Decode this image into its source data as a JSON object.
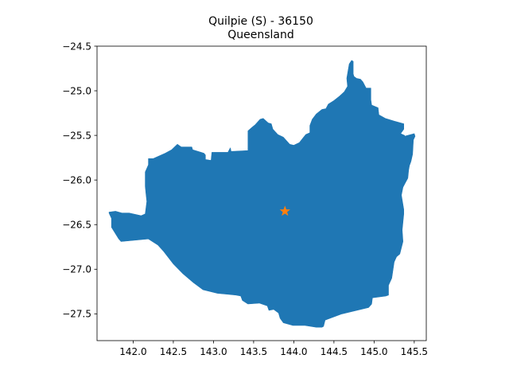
{
  "figure": {
    "title": "Quilpie (S) - 36150",
    "subtitle": "Queensland"
  },
  "chart_data": {
    "type": "map",
    "title": "Quilpie (S) - 36150",
    "subtitle": "Queensland",
    "xlim": [
      141.55,
      145.65
    ],
    "ylim": [
      -27.8,
      -24.5
    ],
    "grid": false,
    "x_ticks": [
      142.0,
      142.5,
      143.0,
      143.5,
      144.0,
      144.5,
      145.0,
      145.5
    ],
    "x_tick_labels": [
      "142.0",
      "142.5",
      "143.0",
      "143.5",
      "144.0",
      "144.5",
      "145.0",
      "145.5"
    ],
    "y_ticks": [
      -24.5,
      -25.0,
      -25.5,
      -26.0,
      -26.5,
      -27.0,
      -27.5
    ],
    "y_tick_labels": [
      "−24.5",
      "−25.0",
      "−25.5",
      "−26.0",
      "−26.5",
      "−27.0",
      "−27.5"
    ],
    "region": {
      "fill_color": "#1f77b4",
      "boundary_lonlat": [
        [
          141.7,
          -26.36
        ],
        [
          141.78,
          -26.35
        ],
        [
          141.86,
          -26.37
        ],
        [
          141.95,
          -26.37
        ],
        [
          142.05,
          -26.39
        ],
        [
          142.1,
          -26.4
        ],
        [
          142.15,
          -26.38
        ],
        [
          142.17,
          -26.24
        ],
        [
          142.16,
          -26.16
        ],
        [
          142.15,
          -26.07
        ],
        [
          142.15,
          -25.91
        ],
        [
          142.19,
          -25.83
        ],
        [
          142.19,
          -25.76
        ],
        [
          142.25,
          -25.76
        ],
        [
          142.3,
          -25.74
        ],
        [
          142.4,
          -25.7
        ],
        [
          142.48,
          -25.66
        ],
        [
          142.55,
          -25.6
        ],
        [
          142.6,
          -25.63
        ],
        [
          142.73,
          -25.63
        ],
        [
          142.74,
          -25.66
        ],
        [
          142.88,
          -25.7
        ],
        [
          142.9,
          -25.72
        ],
        [
          142.9,
          -25.77
        ],
        [
          142.97,
          -25.78
        ],
        [
          142.98,
          -25.69
        ],
        [
          143.18,
          -25.69
        ],
        [
          143.21,
          -25.64
        ],
        [
          143.22,
          -25.68
        ],
        [
          143.43,
          -25.67
        ],
        [
          143.43,
          -25.45
        ],
        [
          143.48,
          -25.41
        ],
        [
          143.52,
          -25.38
        ],
        [
          143.58,
          -25.32
        ],
        [
          143.62,
          -25.31
        ],
        [
          143.68,
          -25.36
        ],
        [
          143.72,
          -25.37
        ],
        [
          143.74,
          -25.43
        ],
        [
          143.8,
          -25.49
        ],
        [
          143.87,
          -25.52
        ],
        [
          143.95,
          -25.6
        ],
        [
          144.0,
          -25.61
        ],
        [
          144.07,
          -25.58
        ],
        [
          144.15,
          -25.49
        ],
        [
          144.2,
          -25.47
        ],
        [
          144.2,
          -25.39
        ],
        [
          144.23,
          -25.32
        ],
        [
          144.28,
          -25.26
        ],
        [
          144.35,
          -25.21
        ],
        [
          144.4,
          -25.2
        ],
        [
          144.43,
          -25.15
        ],
        [
          144.5,
          -25.11
        ],
        [
          144.57,
          -25.06
        ],
        [
          144.63,
          -25.01
        ],
        [
          144.65,
          -24.98
        ],
        [
          144.67,
          -24.95
        ],
        [
          144.66,
          -24.86
        ],
        [
          144.69,
          -24.7
        ],
        [
          144.72,
          -24.66
        ],
        [
          144.74,
          -24.67
        ],
        [
          144.74,
          -24.81
        ],
        [
          144.75,
          -24.84
        ],
        [
          144.78,
          -24.86
        ],
        [
          144.83,
          -24.87
        ],
        [
          144.86,
          -24.9
        ],
        [
          144.9,
          -24.97
        ],
        [
          144.96,
          -24.97
        ],
        [
          144.96,
          -25.1
        ],
        [
          144.97,
          -25.16
        ],
        [
          145.05,
          -25.19
        ],
        [
          145.06,
          -25.27
        ],
        [
          145.14,
          -25.31
        ],
        [
          145.25,
          -25.34
        ],
        [
          145.37,
          -25.37
        ],
        [
          145.37,
          -25.43
        ],
        [
          145.33,
          -25.48
        ],
        [
          145.38,
          -25.5
        ],
        [
          145.38,
          -25.51
        ],
        [
          145.5,
          -25.48
        ],
        [
          145.51,
          -25.51
        ],
        [
          145.49,
          -25.55
        ],
        [
          145.48,
          -25.71
        ],
        [
          145.46,
          -25.79
        ],
        [
          145.44,
          -25.84
        ],
        [
          145.43,
          -25.89
        ],
        [
          145.42,
          -25.98
        ],
        [
          145.36,
          -26.08
        ],
        [
          145.34,
          -26.17
        ],
        [
          145.37,
          -26.33
        ],
        [
          145.37,
          -26.38
        ],
        [
          145.35,
          -26.56
        ],
        [
          145.36,
          -26.69
        ],
        [
          145.32,
          -26.83
        ],
        [
          145.28,
          -26.86
        ],
        [
          145.25,
          -26.92
        ],
        [
          145.22,
          -27.1
        ],
        [
          145.18,
          -27.18
        ],
        [
          145.18,
          -27.29
        ],
        [
          145.15,
          -27.3
        ],
        [
          144.98,
          -27.32
        ],
        [
          144.97,
          -27.39
        ],
        [
          144.93,
          -27.43
        ],
        [
          144.6,
          -27.5
        ],
        [
          144.39,
          -27.57
        ],
        [
          144.37,
          -27.64
        ],
        [
          144.35,
          -27.65
        ],
        [
          144.28,
          -27.65
        ],
        [
          144.14,
          -27.63
        ],
        [
          143.99,
          -27.63
        ],
        [
          143.87,
          -27.6
        ],
        [
          143.83,
          -27.55
        ],
        [
          143.81,
          -27.49
        ],
        [
          143.75,
          -27.45
        ],
        [
          143.69,
          -27.46
        ],
        [
          143.67,
          -27.41
        ],
        [
          143.57,
          -27.38
        ],
        [
          143.43,
          -27.39
        ],
        [
          143.36,
          -27.35
        ],
        [
          143.34,
          -27.3
        ],
        [
          143.28,
          -27.29
        ],
        [
          143.17,
          -27.28
        ],
        [
          143.05,
          -27.27
        ],
        [
          142.87,
          -27.23
        ],
        [
          142.75,
          -27.15
        ],
        [
          142.62,
          -27.05
        ],
        [
          142.5,
          -26.94
        ],
        [
          142.38,
          -26.8
        ],
        [
          142.31,
          -26.73
        ],
        [
          142.19,
          -26.66
        ],
        [
          141.85,
          -26.69
        ],
        [
          141.82,
          -26.66
        ],
        [
          141.73,
          -26.53
        ],
        [
          141.73,
          -26.43
        ],
        [
          141.7,
          -26.37
        ]
      ]
    },
    "marker": {
      "symbol": "star",
      "lon": 143.89,
      "lat": -26.35,
      "color": "#ff7f0e"
    }
  }
}
